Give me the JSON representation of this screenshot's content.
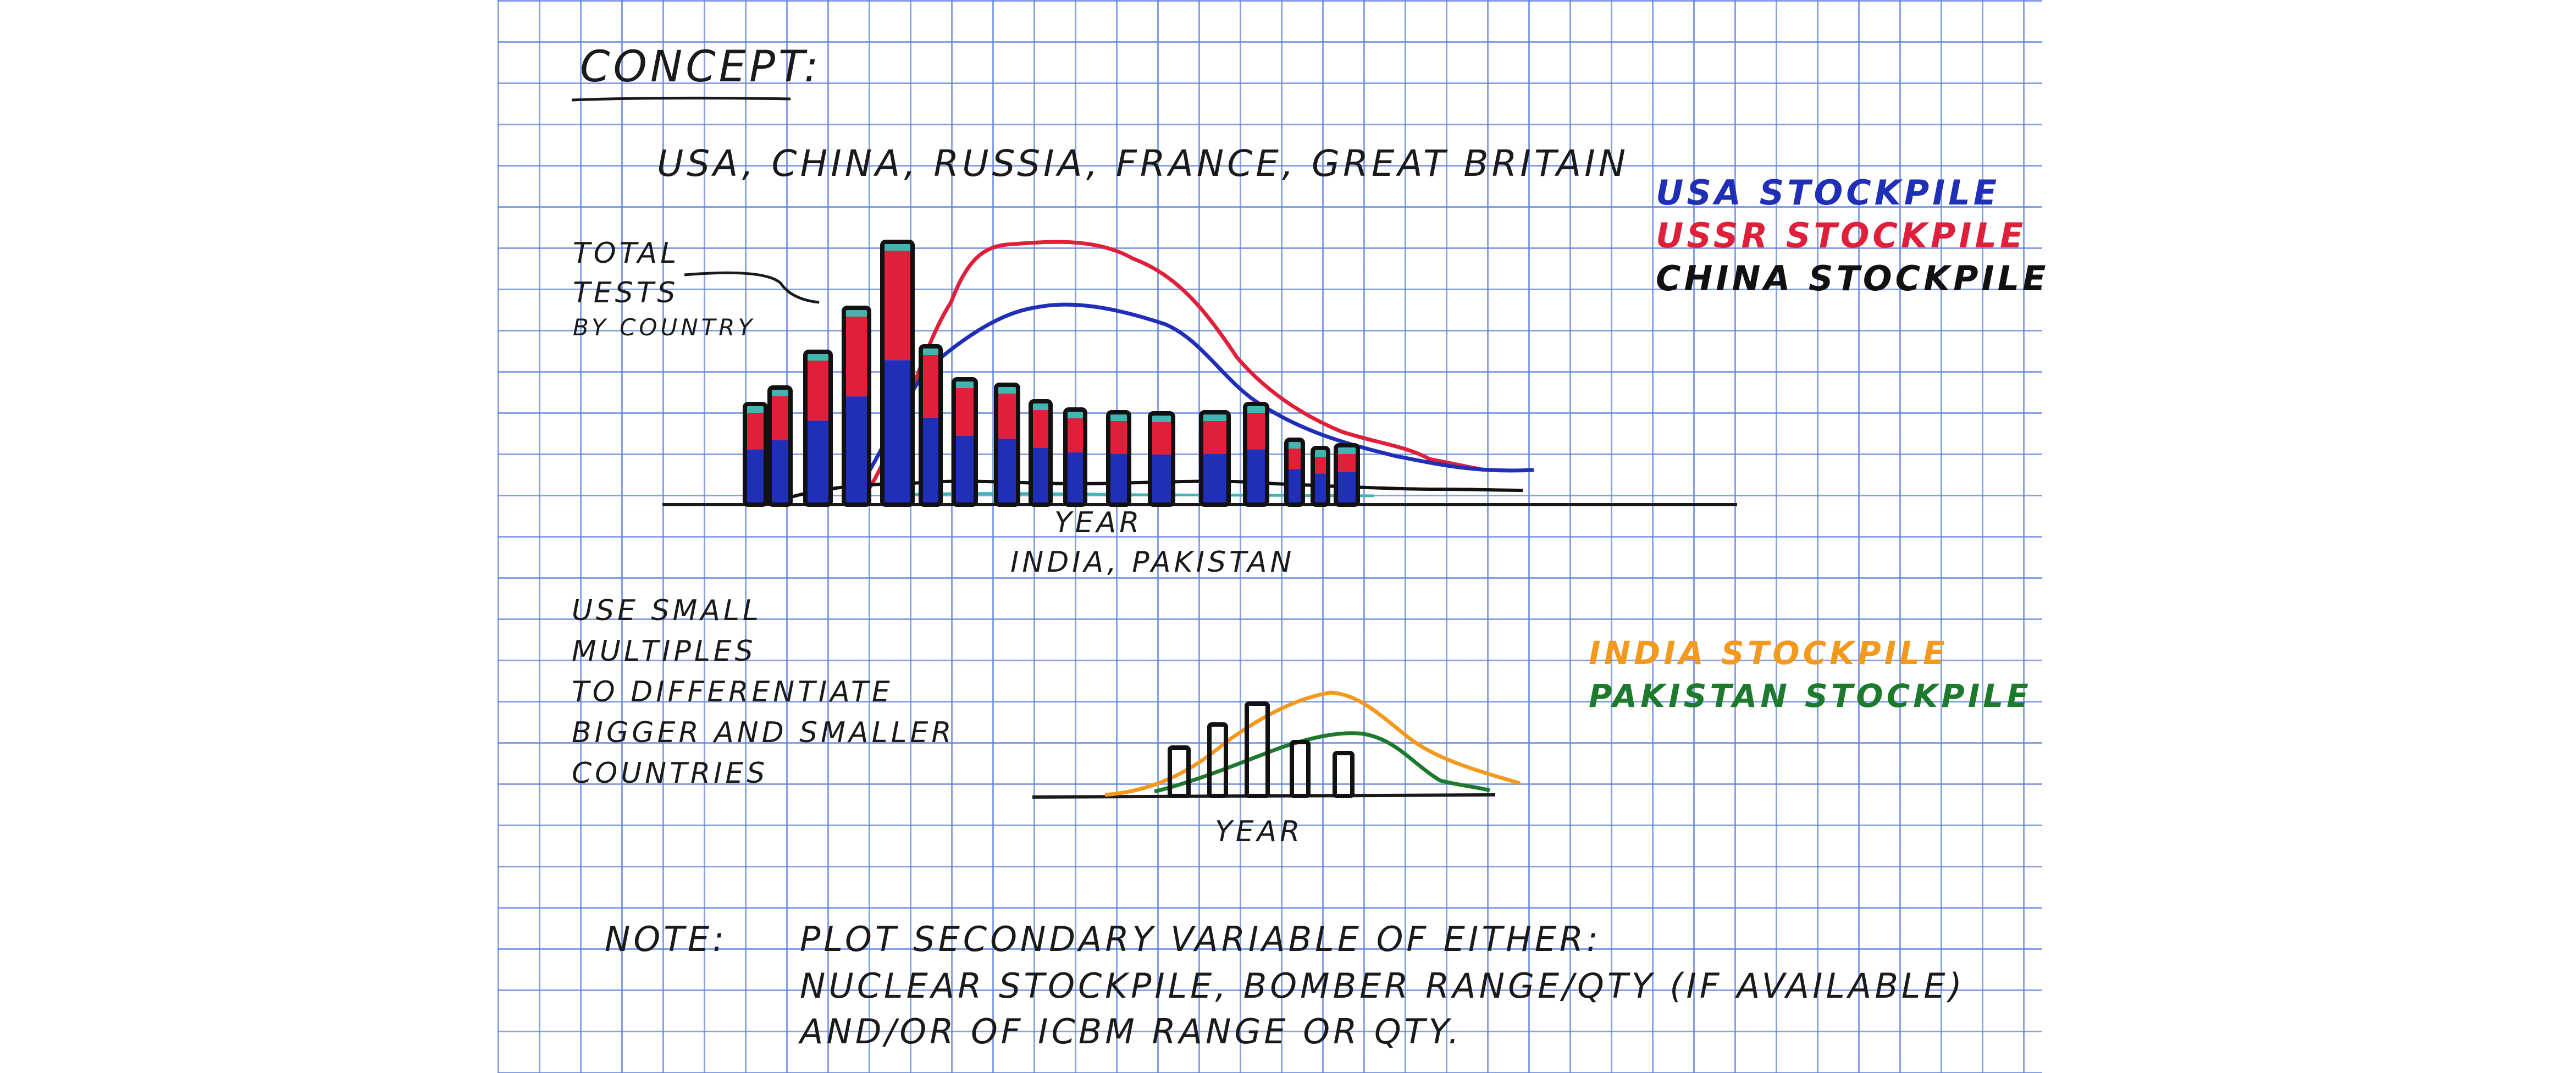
{
  "concept_label": "CONCEPT:",
  "countries_line": "USA, CHINA, RUSSIA, FRANCE, GREAT BRITAIN",
  "total_tests_label": [
    "TOTAL",
    "TESTS",
    "BY COUNTRY"
  ],
  "year_label_top": "YEAR",
  "india_pakistan_label": "INDIA, PAKISTAN",
  "year_label_bottom": "YEAR",
  "legend_top": [
    {
      "label": "USA STOCKPILE",
      "color": "#1f2fb8"
    },
    {
      "label": "USSR STOCKPILE",
      "color": "#e0203a"
    },
    {
      "label": "CHINA STOCKPILE",
      "color": "#111111"
    }
  ],
  "legend_bottom": [
    {
      "label": "INDIA STOCKPILE",
      "color": "#f39a1e"
    },
    {
      "label": "PAKISTAN STOCKPILE",
      "color": "#1d7a2c"
    }
  ],
  "multiples_note": [
    "USE SMALL",
    "MULTIPLES",
    "TO DIFFERENTIATE",
    "BIGGER AND SMALLER",
    "COUNTRIES"
  ],
  "note_label": "NOTE:",
  "note_lines": [
    "PLOT SECONDARY VARIABLE OF EITHER:",
    "NUCLEAR STOCKPILE, BOMBER RANGE/QTY (IF AVAILABLE)",
    "AND/OR OF ICBM RANGE OR QTY."
  ],
  "colors": {
    "usa": "#1f2fb8",
    "ussr": "#e0203a",
    "china": "#111111",
    "india": "#f39a1e",
    "pakistan": "#1d7a2c",
    "teal": "#3fb6b0",
    "grid": "#5f82dc"
  }
}
